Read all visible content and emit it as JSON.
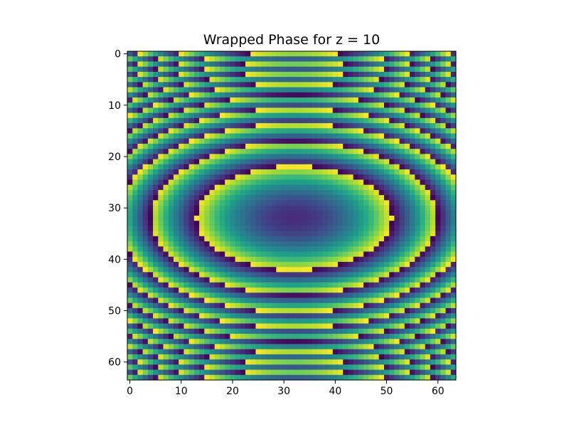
{
  "chart_data": {
    "type": "heatmap",
    "title": "Wrapped Phase for z = 10",
    "xlabel": "",
    "ylabel": "",
    "grid": false,
    "colormap": "viridis",
    "rows": 64,
    "cols": 64,
    "xlim": [
      -0.5,
      63.5
    ],
    "ylim": [
      63.5,
      -0.5
    ],
    "x_ticks": [
      0,
      10,
      20,
      30,
      40,
      50,
      60
    ],
    "x_tick_labels": [
      "0",
      "10",
      "20",
      "30",
      "40",
      "50",
      "60"
    ],
    "y_ticks": [
      0,
      10,
      20,
      30,
      40,
      50,
      60
    ],
    "y_tick_labels": [
      "0",
      "10",
      "20",
      "30",
      "40",
      "50",
      "60"
    ],
    "center": [
      32,
      32
    ],
    "value_range": [
      -3.14159,
      3.14159
    ],
    "colormap_stops": [
      "#440154",
      "#482878",
      "#3e4989",
      "#31688e",
      "#26828e",
      "#1f9e89",
      "#35b779",
      "#6ece58",
      "#b5de2b",
      "#fde725"
    ]
  }
}
